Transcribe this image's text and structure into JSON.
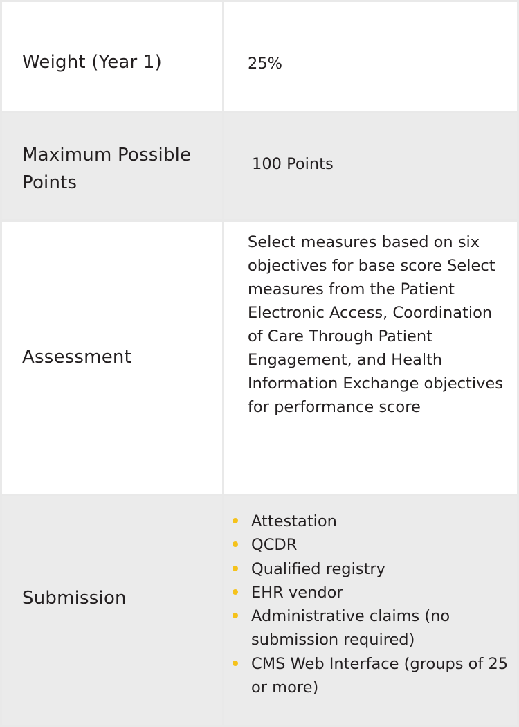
{
  "rows": {
    "weight": {
      "label": "Weight (Year 1)",
      "value": "25%"
    },
    "points": {
      "label": "Maximum Possible Points",
      "value": "100 Points"
    },
    "assessment": {
      "label": "Assessment",
      "value": "Select measures based on six objectives for base score Select measures from the Patient Electronic Access, Coordination of Care Through Patient Engagement, and Health Information Exchange objectives for performance score"
    },
    "submission": {
      "label": "Submission",
      "items": [
        "Attestation",
        "QCDR",
        "Qualified registry",
        "EHR vendor",
        "Administrative claims (no submission required)",
        "CMS Web Interface (groups of 25 or more)"
      ]
    }
  },
  "colors": {
    "bullet": "#f5c21b",
    "row_gray": "#ebebeb",
    "border": "#e9e9e9",
    "text": "#231f20"
  }
}
